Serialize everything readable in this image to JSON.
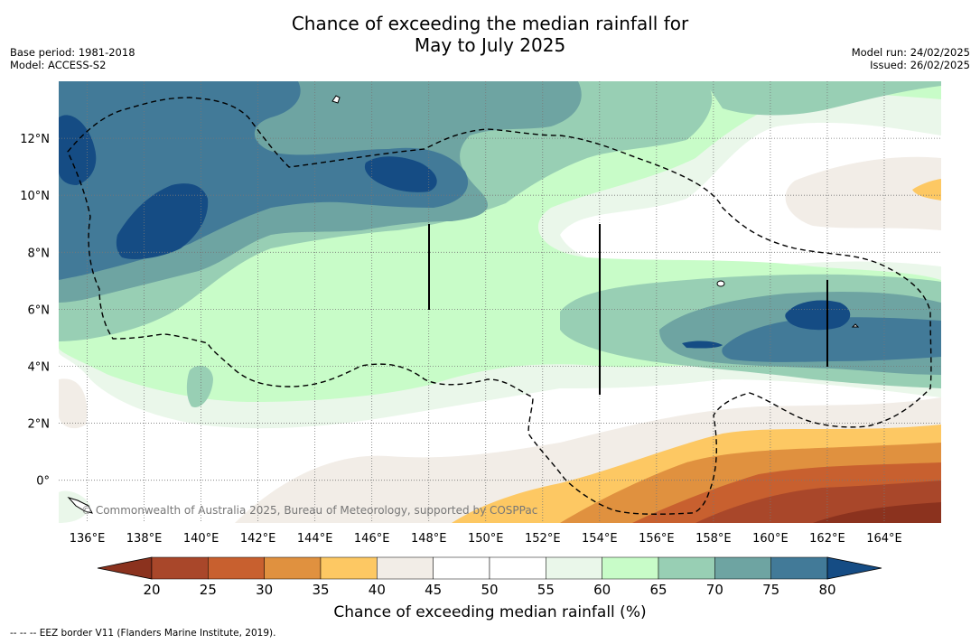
{
  "title_line1": "Chance of exceeding the median rainfall for",
  "title_line2": "May to July 2025",
  "meta": {
    "base_period": "Base period: 1981-2018",
    "model": "Model: ACCESS-S2",
    "model_run": "Model run: 24/02/2025",
    "issued": "Issued: 26/02/2025"
  },
  "map": {
    "lon_range": [
      135,
      166
    ],
    "lat_range": [
      -1.5,
      14
    ],
    "lon_ticks": [
      "136°E",
      "138°E",
      "140°E",
      "142°E",
      "144°E",
      "146°E",
      "148°E",
      "150°E",
      "152°E",
      "154°E",
      "156°E",
      "158°E",
      "160°E",
      "162°E",
      "164°E"
    ],
    "lat_ticks": [
      "0°",
      "2°N",
      "4°N",
      "6°N",
      "8°N",
      "10°N",
      "12°N"
    ],
    "grid": true,
    "copyright": "© Commonwealth of Australia 2025, Bureau of Meteorology, supported by COSPPac"
  },
  "colorbar": {
    "ticks": [
      "20",
      "25",
      "30",
      "35",
      "40",
      "45",
      "50",
      "55",
      "60",
      "65",
      "70",
      "75",
      "80"
    ],
    "colors": [
      "#a9472a",
      "#c8602f",
      "#e0913f",
      "#fdc863",
      "#f2ede7",
      "#ffffff",
      "#ffffff",
      "#eaf7ea",
      "#c8fcc8",
      "#98cfb4",
      "#6ea4a2",
      "#427a98",
      "#154c84"
    ],
    "under_color": "#8b321e",
    "over_color": "#154c84",
    "label": "Chance of exceeding median rainfall (%)"
  },
  "footnote": "--  --  -- EEZ border V11 (Flanders Marine Institute, 2019)."
}
